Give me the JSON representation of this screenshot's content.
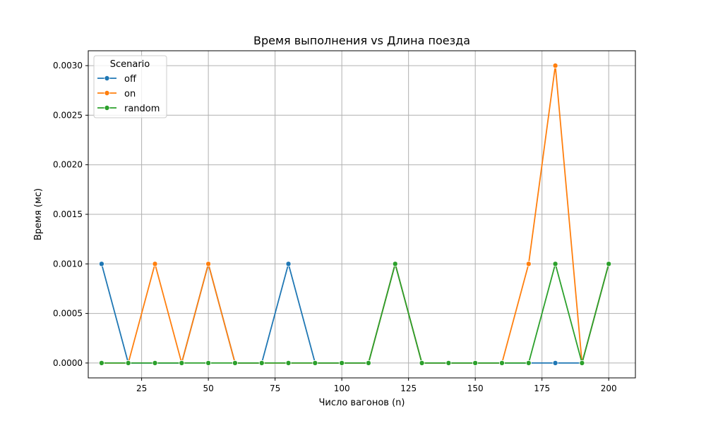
{
  "chart_data": {
    "type": "line",
    "title": "Время выполнения vs Длина поезда",
    "xlabel": "Число вагонов (n)",
    "ylabel": "Время (мс)",
    "xlim": [
      5,
      210
    ],
    "ylim": [
      -0.00015,
      0.00315
    ],
    "x": [
      10,
      20,
      30,
      40,
      50,
      60,
      70,
      80,
      90,
      100,
      110,
      120,
      130,
      140,
      150,
      160,
      170,
      180,
      190,
      200
    ],
    "x_ticks": [
      25,
      50,
      75,
      100,
      125,
      150,
      175,
      200
    ],
    "y_ticks": [
      0,
      0.0005,
      0.001,
      0.0015,
      0.002,
      0.0025,
      0.003
    ],
    "y_tick_labels": [
      "0.0000",
      "0.0005",
      "0.0010",
      "0.0015",
      "0.0020",
      "0.0025",
      "0.0030"
    ],
    "grid": true,
    "legend": {
      "title": "Scenario",
      "position": "top-left"
    },
    "markers": "circle",
    "series": [
      {
        "name": "off",
        "color": "#1f77b4",
        "values": [
          0.001,
          0,
          0,
          0,
          0.001,
          0,
          0,
          0.001,
          0,
          0,
          0,
          0.001,
          0,
          0,
          0,
          0,
          0,
          0,
          0,
          0.001
        ]
      },
      {
        "name": "on",
        "color": "#ff7f0e",
        "values": [
          0,
          0,
          0.001,
          0,
          0.001,
          0,
          0,
          0,
          0,
          0,
          0,
          0.001,
          0,
          0,
          0,
          0,
          0.001,
          0.003,
          0,
          0.001
        ]
      },
      {
        "name": "random",
        "color": "#2ca02c",
        "values": [
          0,
          0,
          0,
          0,
          0,
          0,
          0,
          0,
          0,
          0,
          0,
          0.001,
          0,
          0,
          0,
          0,
          0,
          0.001,
          0,
          0.001
        ]
      }
    ]
  }
}
